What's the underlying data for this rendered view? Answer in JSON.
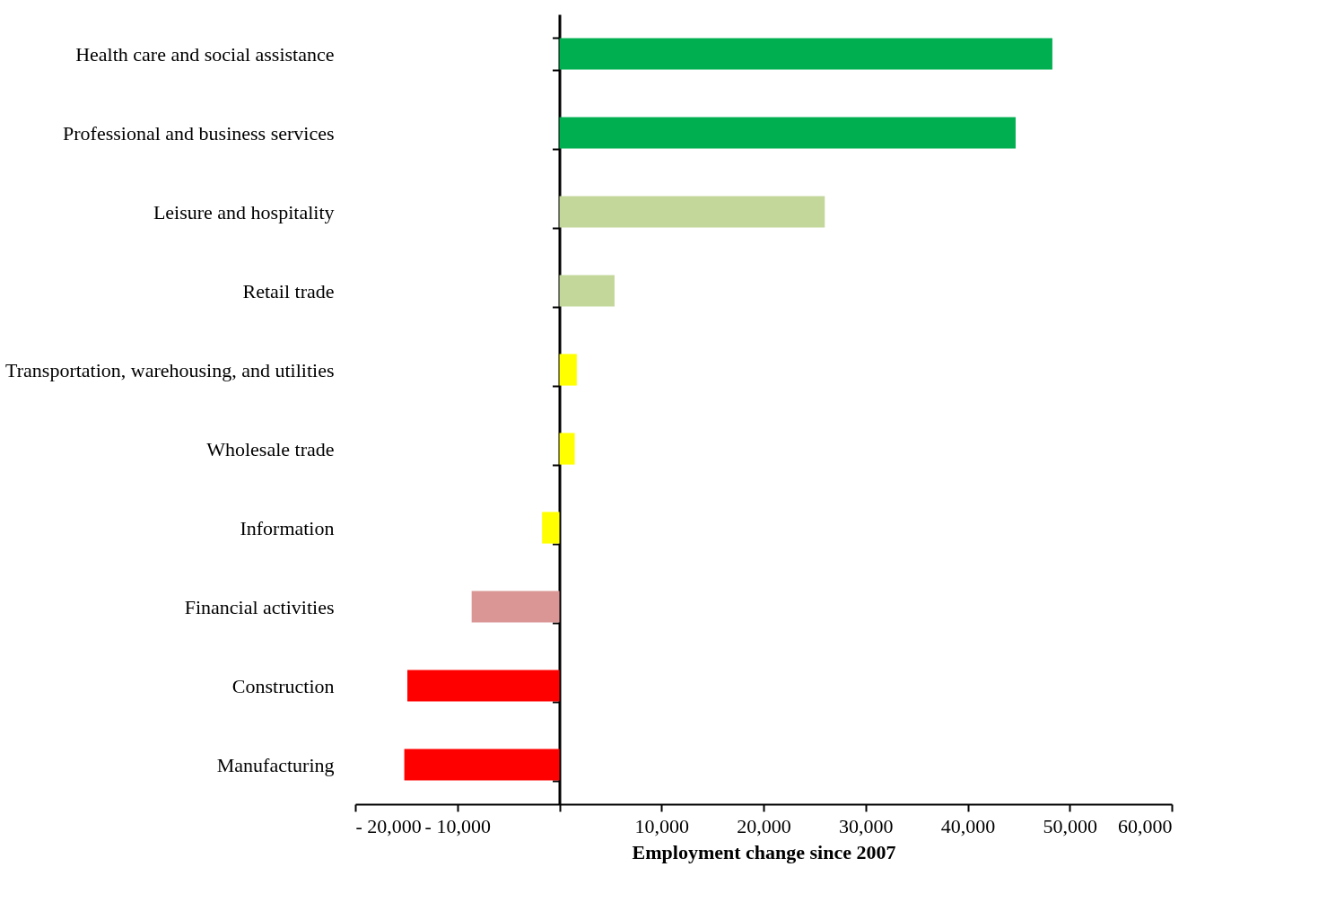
{
  "chart_data": {
    "type": "bar",
    "orientation": "horizontal",
    "xlabel": "Employment change since 2007",
    "categories": [
      "Health care and social assistance",
      "Professional and business services",
      "Leisure and hospitality",
      "Retail trade",
      "Transportation, warehousing, and utilities",
      "Wholesale trade",
      "Information",
      "Financial activities",
      "Construction",
      "Manufacturing"
    ],
    "values": [
      48300,
      44700,
      26000,
      5400,
      1700,
      1500,
      -1700,
      -8600,
      -14900,
      -15200
    ],
    "colors": [
      "#00b050",
      "#00b050",
      "#c4d79b",
      "#c4d79b",
      "#ffff00",
      "#ffff00",
      "#ffff00",
      "#da9694",
      "#ff0000",
      "#ff0000"
    ],
    "xlim": [
      -20000,
      60000
    ],
    "xticks": [
      {
        "value": -20000,
        "label": "- 20,000"
      },
      {
        "value": -10000,
        "label": "- 10,000"
      },
      {
        "value": 0,
        "label": null
      },
      {
        "value": 10000,
        "label": "10,000"
      },
      {
        "value": 20000,
        "label": "20,000"
      },
      {
        "value": 30000,
        "label": "30,000"
      },
      {
        "value": 40000,
        "label": "40,000"
      },
      {
        "value": 50000,
        "label": "50,000"
      },
      {
        "value": 60000,
        "label": "60,000"
      }
    ]
  }
}
